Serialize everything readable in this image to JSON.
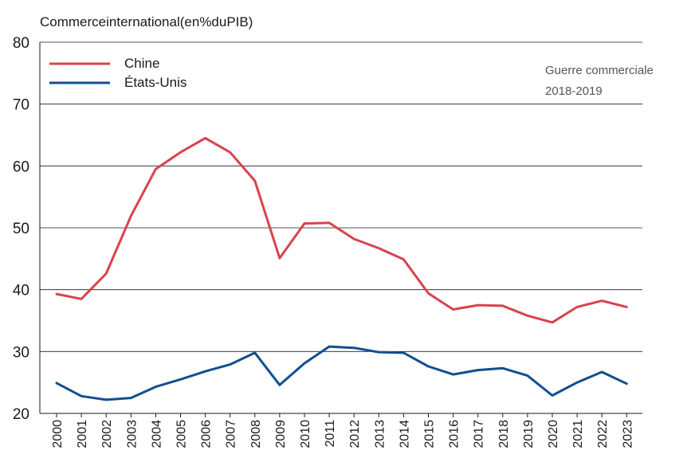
{
  "chart_data": {
    "type": "line",
    "ylabel": "Commerceinternational(en%duPIB)",
    "ylim": [
      20,
      80
    ],
    "yticks": [
      20,
      30,
      40,
      50,
      60,
      70,
      80
    ],
    "grid": true,
    "legend_position": "top-left",
    "x": [
      "2000",
      "2001",
      "2002",
      "2003",
      "2004",
      "2005",
      "2006",
      "2007",
      "2008",
      "2009",
      "2010",
      "2011",
      "2012",
      "2013",
      "2014",
      "2015",
      "2016",
      "2017",
      "2018",
      "2019",
      "2020",
      "2021",
      "2022",
      "2023"
    ],
    "series": [
      {
        "name": "Chine",
        "color": "#d9424e",
        "values": [
          39.3,
          38.5,
          42.6,
          51.9,
          59.5,
          62.2,
          64.5,
          62.2,
          57.6,
          45.1,
          50.7,
          50.8,
          48.2,
          46.7,
          44.9,
          39.4,
          36.8,
          37.5,
          37.4,
          35.8,
          34.7,
          37.2,
          38.2,
          37.2
        ]
      },
      {
        "name": "États-Unis",
        "color": "#124e90",
        "values": [
          24.9,
          22.8,
          22.2,
          22.5,
          24.3,
          25.5,
          26.8,
          27.9,
          29.8,
          24.6,
          28.1,
          30.8,
          30.6,
          29.9,
          29.8,
          27.6,
          26.3,
          27.0,
          27.3,
          26.1,
          22.9,
          25.0,
          26.7,
          24.8
        ]
      }
    ],
    "annotation": {
      "line1": "Guerre commerciale",
      "line2": "2018-2019"
    }
  }
}
